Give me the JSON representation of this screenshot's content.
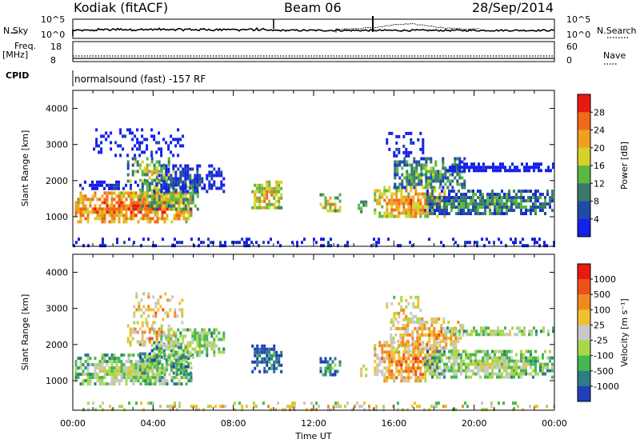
{
  "header": {
    "station": "Kodiak (fitACF)",
    "beam": "Beam 06",
    "date": "28/Sep/2014"
  },
  "strip_labels": {
    "nsky": "N.Sky",
    "nsky_ticks": [
      "10^5",
      "10^0"
    ],
    "nsearch": "N.Search",
    "freq": "Freq.",
    "freq_unit": "[MHz]",
    "freq_ticks": [
      "18",
      "8"
    ],
    "nave": "Nave",
    "nave_ticks": [
      "60",
      "0"
    ],
    "cpid": "CPID",
    "cpid_text": "normalsound (fast) -157 RF"
  },
  "chart_data": [
    {
      "type": "heatmap",
      "title": "",
      "xlabel": "Time UT",
      "ylabel": "Slant Range [km]",
      "x_ticks": [
        "00:00",
        "04:00",
        "08:00",
        "12:00",
        "16:00",
        "20:00",
        "00:00"
      ],
      "y_ticks": [
        1000,
        2000,
        3000,
        4000
      ],
      "xlim_hours": [
        0,
        24
      ],
      "ylim_km": [
        180,
        4500
      ],
      "colorbar": {
        "label": "Power [dB]",
        "ticks": [
          "4",
          "8",
          "12",
          "16",
          "20",
          "24",
          "28"
        ],
        "colors": [
          "#1520e8",
          "#1f4aa8",
          "#3a7a6a",
          "#58b840",
          "#d6d22a",
          "#f0a020",
          "#f06a18",
          "#e81a10"
        ]
      },
      "blobs": [
        {
          "t0": 0.1,
          "t1": 5.9,
          "r0": 900,
          "r1": 1700,
          "v": 0.85,
          "d": 0.9
        },
        {
          "t0": 0.2,
          "t1": 3.2,
          "r0": 1750,
          "r1": 2000,
          "v": 0.15,
          "d": 0.75
        },
        {
          "t0": 3.3,
          "t1": 6.2,
          "r0": 1250,
          "r1": 2050,
          "v": 0.55,
          "d": 0.85
        },
        {
          "t0": 4.0,
          "t1": 7.5,
          "r0": 1700,
          "r1": 2450,
          "v": 0.2,
          "d": 0.7
        },
        {
          "t0": 2.7,
          "t1": 5.0,
          "r0": 1950,
          "r1": 2650,
          "v": 0.55,
          "d": 0.6
        },
        {
          "t0": 1.0,
          "t1": 5.5,
          "r0": 2700,
          "r1": 3450,
          "v": 0.1,
          "d": 0.35
        },
        {
          "t0": 8.9,
          "t1": 10.4,
          "r0": 1250,
          "r1": 2000,
          "v": 0.7,
          "d": 0.85
        },
        {
          "t0": 12.3,
          "t1": 13.3,
          "r0": 1150,
          "r1": 1650,
          "v": 0.65,
          "d": 0.7
        },
        {
          "t0": 14.2,
          "t1": 14.6,
          "r0": 1150,
          "r1": 1450,
          "v": 0.6,
          "d": 0.6
        },
        {
          "t0": 15.0,
          "t1": 18.5,
          "r0": 1000,
          "r1": 1850,
          "v": 0.75,
          "d": 0.9
        },
        {
          "t0": 16.0,
          "t1": 19.5,
          "r0": 1800,
          "r1": 2650,
          "v": 0.45,
          "d": 0.8
        },
        {
          "t0": 17.5,
          "t1": 23.9,
          "r0": 1100,
          "r1": 1750,
          "v": 0.4,
          "d": 0.9
        },
        {
          "t0": 18.5,
          "t1": 23.9,
          "r0": 2250,
          "r1": 2500,
          "v": 0.05,
          "d": 0.8
        },
        {
          "t0": 15.6,
          "t1": 17.5,
          "r0": 2650,
          "r1": 3350,
          "v": 0.1,
          "d": 0.35
        },
        {
          "t0": 0.0,
          "t1": 24.0,
          "r0": 180,
          "r1": 420,
          "v": 0.15,
          "d": 0.3
        }
      ]
    },
    {
      "type": "heatmap",
      "title": "",
      "xlabel": "Time UT",
      "ylabel": "Slant Range [km]",
      "x_ticks": [
        "00:00",
        "04:00",
        "08:00",
        "12:00",
        "16:00",
        "20:00",
        "00:00"
      ],
      "y_ticks": [
        1000,
        2000,
        3000,
        4000
      ],
      "xlim_hours": [
        0,
        24
      ],
      "ylim_km": [
        180,
        4500
      ],
      "colorbar": {
        "label": "Velocity [m s⁻¹]",
        "ticks": [
          "1000",
          "500",
          "100",
          "25",
          "-25",
          "-100",
          "-500",
          "-1000"
        ],
        "colors": [
          "#2040b8",
          "#2c7e84",
          "#46b850",
          "#a8d84a",
          "#c8c8c8",
          "#f0c030",
          "#f08a20",
          "#f05018",
          "#e81a10"
        ]
      },
      "blobs": [
        {
          "t0": 0.1,
          "t1": 5.9,
          "r0": 900,
          "r1": 1750,
          "v": 0.5,
          "d": 0.9
        },
        {
          "t0": 4.0,
          "t1": 7.5,
          "r0": 1700,
          "r1": 2450,
          "v": 0.5,
          "d": 0.75
        },
        {
          "t0": 3.3,
          "t1": 6.0,
          "r0": 1250,
          "r1": 2050,
          "v": 0.35,
          "d": 0.55
        },
        {
          "t0": 2.7,
          "t1": 5.0,
          "r0": 1950,
          "r1": 2650,
          "v": 0.7,
          "d": 0.55
        },
        {
          "t0": 3.0,
          "t1": 5.5,
          "r0": 2650,
          "r1": 3450,
          "v": 0.7,
          "d": 0.4
        },
        {
          "t0": 8.9,
          "t1": 10.4,
          "r0": 1250,
          "r1": 2000,
          "v": 0.2,
          "d": 0.85
        },
        {
          "t0": 12.3,
          "t1": 13.3,
          "r0": 1150,
          "r1": 1650,
          "v": 0.3,
          "d": 0.65
        },
        {
          "t0": 14.2,
          "t1": 14.6,
          "r0": 1150,
          "r1": 1450,
          "v": 0.7,
          "d": 0.6
        },
        {
          "t0": 15.0,
          "t1": 18.3,
          "r0": 1000,
          "r1": 2100,
          "v": 0.78,
          "d": 0.85
        },
        {
          "t0": 15.8,
          "t1": 19.5,
          "r0": 1800,
          "r1": 2750,
          "v": 0.72,
          "d": 0.75
        },
        {
          "t0": 17.5,
          "t1": 23.9,
          "r0": 1100,
          "r1": 1850,
          "v": 0.5,
          "d": 0.9
        },
        {
          "t0": 18.5,
          "t1": 23.9,
          "r0": 2250,
          "r1": 2500,
          "v": 0.5,
          "d": 0.8
        },
        {
          "t0": 15.6,
          "t1": 17.5,
          "r0": 2650,
          "r1": 3350,
          "v": 0.65,
          "d": 0.3
        },
        {
          "t0": 0.0,
          "t1": 24.0,
          "r0": 180,
          "r1": 420,
          "v": 0.62,
          "d": 0.3
        }
      ]
    }
  ]
}
